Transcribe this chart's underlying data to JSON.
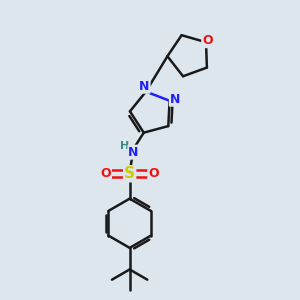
{
  "bg_color": "#dde6ec",
  "bond_color": "#1a1a1a",
  "N_color": "#2020ff",
  "O_color": "#ee1111",
  "S_color": "#cccc00",
  "H_color": "#3a8a8a",
  "figsize": [
    3.0,
    3.0
  ],
  "dpi": 100,
  "xlim": [
    0,
    10
  ],
  "ylim": [
    0,
    10
  ]
}
